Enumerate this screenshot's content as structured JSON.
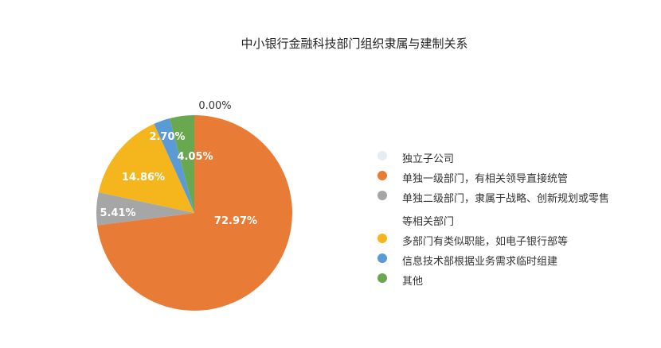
{
  "chart_data": {
    "type": "pie",
    "title": "中小银行金融科技部门组织隶属与建制关系",
    "categories": [
      "独立子公司",
      "单独一级部门，有相关领导直接统管",
      "单独二级部门，隶属于战略、创新规划或零售等相关部门",
      "多部门有类似职能，如电子银行部等",
      "信息技术部根据业务需求临时组建",
      "其他"
    ],
    "values": [
      0.0,
      72.97,
      5.41,
      14.86,
      2.7,
      4.05
    ],
    "data_labels": [
      "0.00%",
      "72.97%",
      "5.41%",
      "14.86%",
      "2.70%",
      "4.05%"
    ],
    "colors": [
      "#e6ecf1",
      "#e87b35",
      "#a6a6a6",
      "#f5b51c",
      "#5b9bd5",
      "#6aa84f"
    ],
    "legend_position": "right"
  }
}
